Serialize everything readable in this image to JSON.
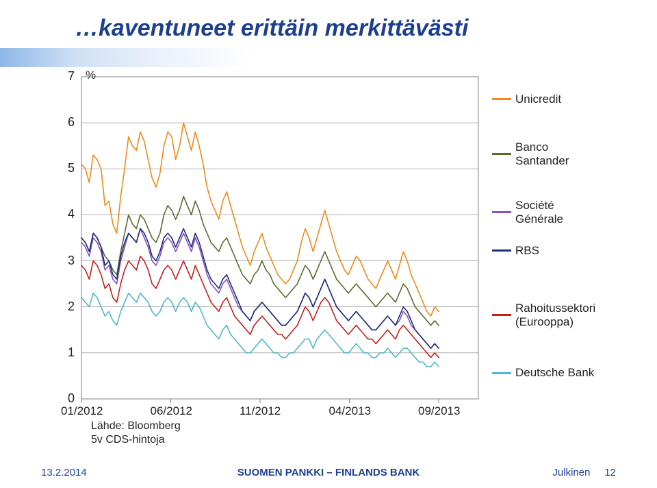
{
  "title": "…kaventuneet erittäin merkittävästi",
  "pct_label": "%",
  "y": {
    "min": 0,
    "max": 7,
    "ticks": [
      0,
      1,
      2,
      3,
      4,
      5,
      6,
      7
    ]
  },
  "x": {
    "labels": [
      "01/2012",
      "06/2012",
      "11/2012",
      "04/2013",
      "09/2013"
    ],
    "positions": [
      0,
      0.225,
      0.45,
      0.675,
      0.9
    ]
  },
  "plot": {
    "background": "#ffffff",
    "border": "#808080",
    "grid": "#808080",
    "line_w": 1.6,
    "font": "Arial"
  },
  "series": [
    {
      "name": "Unicredit",
      "color": "#ef8b1a",
      "data": [
        5.1,
        5.0,
        4.7,
        5.3,
        5.2,
        5.0,
        4.2,
        4.3,
        3.8,
        3.6,
        4.4,
        5.0,
        5.7,
        5.5,
        5.4,
        5.8,
        5.6,
        5.2,
        4.8,
        4.6,
        4.9,
        5.5,
        5.8,
        5.7,
        5.2,
        5.5,
        6.0,
        5.7,
        5.4,
        5.8,
        5.5,
        5.1,
        4.6,
        4.3,
        4.1,
        3.9,
        4.3,
        4.5,
        4.2,
        3.9,
        3.6,
        3.3,
        3.1,
        2.9,
        3.2,
        3.4,
        3.6,
        3.3,
        3.1,
        2.9,
        2.7,
        2.6,
        2.5,
        2.6,
        2.8,
        3.0,
        3.4,
        3.7,
        3.5,
        3.2,
        3.5,
        3.8,
        4.1,
        3.8,
        3.5,
        3.2,
        3.0,
        2.8,
        2.7,
        2.9,
        3.1,
        3.0,
        2.8,
        2.6,
        2.5,
        2.4,
        2.6,
        2.8,
        3.0,
        2.8,
        2.6,
        2.9,
        3.2,
        3.0,
        2.7,
        2.5,
        2.3,
        2.1,
        1.9,
        1.8,
        2.0,
        1.9
      ]
    },
    {
      "name": "Banco Santander",
      "color": "#5a6b2e",
      "data": [
        3.5,
        3.4,
        3.2,
        3.6,
        3.5,
        3.3,
        3.1,
        3.0,
        2.8,
        2.7,
        3.2,
        3.6,
        4.0,
        3.8,
        3.7,
        4.0,
        3.9,
        3.7,
        3.5,
        3.4,
        3.6,
        4.0,
        4.2,
        4.1,
        3.9,
        4.1,
        4.4,
        4.2,
        4.0,
        4.3,
        4.1,
        3.8,
        3.6,
        3.4,
        3.3,
        3.2,
        3.4,
        3.5,
        3.3,
        3.1,
        2.9,
        2.7,
        2.6,
        2.5,
        2.7,
        2.8,
        3.0,
        2.8,
        2.7,
        2.5,
        2.4,
        2.3,
        2.2,
        2.3,
        2.4,
        2.5,
        2.7,
        2.9,
        2.8,
        2.6,
        2.8,
        3.0,
        3.2,
        3.0,
        2.8,
        2.6,
        2.5,
        2.4,
        2.3,
        2.4,
        2.5,
        2.4,
        2.3,
        2.2,
        2.1,
        2.0,
        2.1,
        2.2,
        2.3,
        2.2,
        2.1,
        2.3,
        2.5,
        2.4,
        2.2,
        2.0,
        1.9,
        1.8,
        1.7,
        1.6,
        1.7,
        1.6
      ]
    },
    {
      "name": "Société Générale",
      "color": "#8a4fc0",
      "data": [
        3.4,
        3.3,
        3.1,
        3.5,
        3.4,
        3.2,
        2.8,
        2.9,
        2.6,
        2.5,
        3.0,
        3.3,
        3.6,
        3.5,
        3.4,
        3.7,
        3.5,
        3.3,
        3.0,
        2.9,
        3.1,
        3.4,
        3.5,
        3.4,
        3.2,
        3.4,
        3.6,
        3.4,
        3.2,
        3.5,
        3.3,
        3.0,
        2.7,
        2.5,
        2.4,
        2.3,
        2.5,
        2.6,
        2.4,
        2.2,
        2.0,
        1.9,
        1.8,
        1.7,
        1.9,
        2.0,
        2.1,
        2.0,
        1.9,
        1.8,
        1.7,
        1.6,
        1.6,
        1.7,
        1.8,
        1.9,
        2.1,
        2.3,
        2.2,
        2.0,
        2.2,
        2.4,
        2.6,
        2.4,
        2.2,
        2.0,
        1.9,
        1.8,
        1.7,
        1.8,
        1.9,
        1.8,
        1.7,
        1.6,
        1.5,
        1.5,
        1.6,
        1.7,
        1.8,
        1.7,
        1.6,
        1.7,
        1.9,
        1.8,
        1.6,
        1.5,
        1.4,
        1.3,
        1.2,
        1.1,
        1.2,
        1.1
      ]
    },
    {
      "name": "RBS",
      "color": "#1b2f7a",
      "data": [
        3.5,
        3.4,
        3.2,
        3.6,
        3.5,
        3.3,
        2.9,
        3.0,
        2.7,
        2.6,
        3.1,
        3.4,
        3.6,
        3.5,
        3.4,
        3.7,
        3.6,
        3.4,
        3.1,
        3.0,
        3.2,
        3.5,
        3.6,
        3.5,
        3.3,
        3.5,
        3.7,
        3.5,
        3.3,
        3.6,
        3.4,
        3.1,
        2.8,
        2.6,
        2.5,
        2.4,
        2.6,
        2.7,
        2.5,
        2.3,
        2.1,
        1.9,
        1.8,
        1.7,
        1.9,
        2.0,
        2.1,
        2.0,
        1.9,
        1.8,
        1.7,
        1.6,
        1.6,
        1.7,
        1.8,
        1.9,
        2.1,
        2.3,
        2.2,
        2.0,
        2.2,
        2.4,
        2.6,
        2.4,
        2.2,
        2.0,
        1.9,
        1.8,
        1.7,
        1.8,
        1.9,
        1.8,
        1.7,
        1.6,
        1.5,
        1.5,
        1.6,
        1.7,
        1.8,
        1.7,
        1.6,
        1.8,
        2.0,
        1.9,
        1.7,
        1.5,
        1.4,
        1.3,
        1.2,
        1.1,
        1.2,
        1.1
      ]
    },
    {
      "name": "Rahoitussektori (Eurooppa)",
      "color": "#c81e1e",
      "data": [
        2.9,
        2.8,
        2.6,
        3.0,
        2.9,
        2.7,
        2.4,
        2.5,
        2.2,
        2.1,
        2.5,
        2.8,
        3.0,
        2.9,
        2.8,
        3.1,
        3.0,
        2.8,
        2.5,
        2.4,
        2.6,
        2.8,
        2.9,
        2.8,
        2.6,
        2.8,
        3.0,
        2.8,
        2.6,
        2.9,
        2.7,
        2.5,
        2.3,
        2.1,
        2.0,
        1.9,
        2.1,
        2.2,
        2.0,
        1.8,
        1.7,
        1.6,
        1.5,
        1.4,
        1.6,
        1.7,
        1.8,
        1.7,
        1.6,
        1.5,
        1.4,
        1.4,
        1.3,
        1.4,
        1.5,
        1.6,
        1.8,
        2.0,
        1.9,
        1.7,
        1.9,
        2.1,
        2.2,
        2.1,
        1.9,
        1.7,
        1.6,
        1.5,
        1.4,
        1.5,
        1.6,
        1.5,
        1.4,
        1.3,
        1.3,
        1.2,
        1.3,
        1.4,
        1.5,
        1.4,
        1.3,
        1.5,
        1.6,
        1.5,
        1.4,
        1.3,
        1.2,
        1.1,
        1.0,
        0.9,
        1.0,
        0.9
      ]
    },
    {
      "name": "Deutsche Bank",
      "color": "#4fb8c9",
      "data": [
        2.2,
        2.1,
        2.0,
        2.3,
        2.2,
        2.0,
        1.8,
        1.9,
        1.7,
        1.6,
        1.9,
        2.1,
        2.3,
        2.2,
        2.1,
        2.3,
        2.2,
        2.1,
        1.9,
        1.8,
        1.9,
        2.1,
        2.2,
        2.1,
        1.9,
        2.1,
        2.2,
        2.1,
        1.9,
        2.1,
        2.0,
        1.8,
        1.6,
        1.5,
        1.4,
        1.3,
        1.5,
        1.6,
        1.4,
        1.3,
        1.2,
        1.1,
        1.0,
        1.0,
        1.1,
        1.2,
        1.3,
        1.2,
        1.1,
        1.0,
        1.0,
        0.9,
        0.9,
        1.0,
        1.0,
        1.1,
        1.2,
        1.3,
        1.3,
        1.1,
        1.3,
        1.4,
        1.5,
        1.4,
        1.3,
        1.2,
        1.1,
        1.0,
        1.0,
        1.1,
        1.2,
        1.1,
        1.0,
        1.0,
        0.9,
        0.9,
        1.0,
        1.0,
        1.1,
        1.0,
        0.9,
        1.0,
        1.1,
        1.1,
        1.0,
        0.9,
        0.8,
        0.8,
        0.7,
        0.7,
        0.8,
        0.7
      ]
    }
  ],
  "legend": [
    {
      "key": "Unicredit",
      "lines": [
        "Unicredit"
      ],
      "y": 0.07
    },
    {
      "key": "Banco Santander",
      "lines": [
        "Banco",
        "Santander"
      ],
      "y": 0.22
    },
    {
      "key": "Société Générale",
      "lines": [
        "Société",
        "Générale"
      ],
      "y": 0.4
    },
    {
      "key": "RBS",
      "lines": [
        "RBS"
      ],
      "y": 0.54
    },
    {
      "key": "Rahoitussektori (Eurooppa)",
      "lines": [
        "Rahoitussektori",
        "(Eurooppa)"
      ],
      "y": 0.72
    },
    {
      "key": "Deutsche Bank",
      "lines": [
        "Deutsche Bank"
      ],
      "y": 0.92
    }
  ],
  "source": "Lähde: Bloomberg\n5v CDS-hintoja",
  "footer": {
    "date": "13.2.2014",
    "center": "SUOMEN PANKKI – FINLANDS BANK",
    "right_label": "Julkinen",
    "page": "12"
  }
}
